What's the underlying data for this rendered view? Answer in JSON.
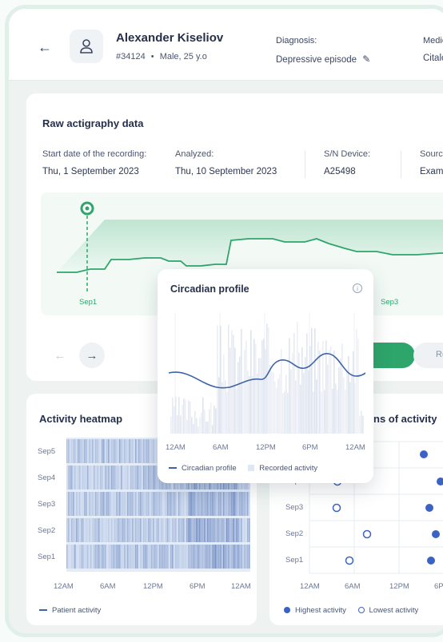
{
  "patient": {
    "name": "Alexander Kiseliov",
    "id": "#34124",
    "sep": "•",
    "details": "Male, 25 y.o"
  },
  "diagnosis": {
    "label": "Diagnosis:",
    "value": "Depressive episode"
  },
  "medication": {
    "label": "Medic",
    "value": "Citalo"
  },
  "raw": {
    "title": "Raw actigraphy data",
    "start_label": "Start date of the recording:",
    "start_value": "Thu, 1 September 2023",
    "analyzed_label": "Analyzed:",
    "analyzed_value": "Thu, 10 September 2023",
    "device_label": "S/N Device:",
    "device_value": "A25498",
    "source_label": "Source",
    "source_value": "Examp",
    "marker_sep1": "Sep1",
    "marker_sep3": "Sep3",
    "right_button": "Re"
  },
  "heatmap": {
    "title": "Activity heatmap",
    "rows": [
      "Sep5",
      "Sep4",
      "Sep3",
      "Sep2",
      "Sep1"
    ],
    "xticks": [
      "12AM",
      "6AM",
      "12PM",
      "6PM",
      "12AM"
    ],
    "legend": "Patient activity"
  },
  "peaks": {
    "title": "ns of activity",
    "rows": [
      "Sep4",
      "Sep3",
      "Sep2",
      "Sep1"
    ],
    "xticks": [
      "12AM",
      "6AM",
      "12PM",
      "6PM"
    ],
    "legend_high": "Highest activity",
    "legend_low": "Lowest activity"
  },
  "popup": {
    "title": "Circadian profile",
    "xticks": [
      "12AM",
      "6AM",
      "12PM",
      "6PM",
      "12AM"
    ],
    "legend_profile": "Circadian profile",
    "legend_recorded": "Recorded activity"
  },
  "colors": {
    "accent_green": "#2ea56b",
    "line_blue": "#3c64a6",
    "heat_blue": "#4a74c8"
  }
}
